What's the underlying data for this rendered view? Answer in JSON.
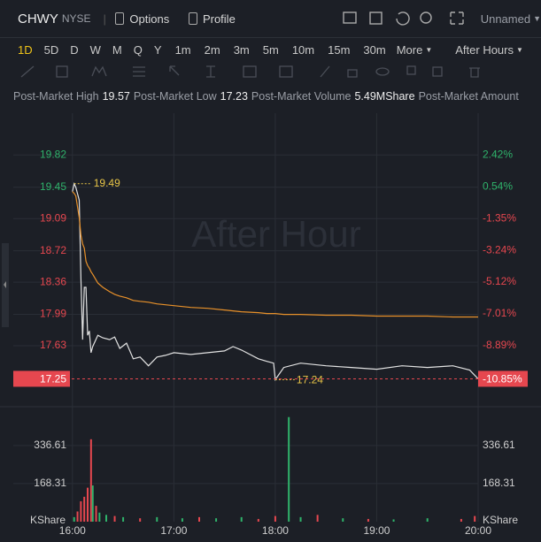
{
  "header": {
    "symbol": "CHWY",
    "exchange": "NYSE",
    "options": "Options",
    "profile": "Profile",
    "layout": "Unnamed"
  },
  "periods": [
    "1D",
    "5D",
    "D",
    "W",
    "M",
    "Q",
    "Y",
    "1m",
    "2m",
    "3m",
    "5m",
    "10m",
    "15m",
    "30m"
  ],
  "more": "More",
  "session": "After Hours",
  "active_color": "#f0c419",
  "stats": [
    {
      "label": "Post-Market High",
      "value": 19.57
    },
    {
      "label": "Post-Market Low",
      "value": 17.23
    },
    {
      "label": "Post-Market Volume",
      "value": "5.49MShare"
    },
    {
      "label": "Post-Market Amount"
    }
  ],
  "chart_data": [
    {
      "type": "line",
      "watermark": "After Hour",
      "up_color": "#2fb36b",
      "down_color": "#e6474f",
      "x": [
        "16:00",
        "16:01",
        "16:02",
        "16:04",
        "16:05",
        "16:06",
        "16:07",
        "16:08",
        "16:09",
        "16:10",
        "16:11",
        "16:12",
        "16:15",
        "16:18",
        "16:22",
        "16:25",
        "16:28",
        "16:32",
        "16:36",
        "16:40",
        "16:45",
        "16:50",
        "16:55",
        "17:00",
        "17:10",
        "17:20",
        "17:30",
        "17:35",
        "17:40",
        "17:50",
        "17:55",
        "17:59",
        "18:00",
        "18:05",
        "18:15",
        "18:30",
        "18:45",
        "19:00",
        "19:15",
        "19:30",
        "19:45",
        "19:55",
        "20:00"
      ],
      "series": [
        {
          "color": "#e2e2e2",
          "values": [
            19.4,
            19.49,
            19.45,
            19.3,
            18.4,
            17.7,
            18.3,
            18.3,
            17.75,
            17.8,
            17.55,
            17.62,
            17.75,
            17.72,
            17.7,
            17.73,
            17.6,
            17.66,
            17.48,
            17.5,
            17.4,
            17.5,
            17.52,
            17.55,
            17.53,
            17.55,
            17.57,
            17.62,
            17.58,
            17.48,
            17.45,
            17.43,
            17.24,
            17.38,
            17.43,
            17.4,
            17.38,
            17.36,
            17.4,
            17.38,
            17.4,
            17.35,
            17.25
          ]
        },
        {
          "color": "#e8912a",
          "values": [
            19.4,
            19.38,
            19.35,
            19.1,
            18.9,
            18.8,
            18.75,
            18.6,
            18.55,
            18.52,
            18.48,
            18.45,
            18.35,
            18.3,
            18.25,
            18.22,
            18.2,
            18.18,
            18.15,
            18.14,
            18.13,
            18.11,
            18.1,
            18.09,
            18.07,
            18.06,
            18.04,
            18.03,
            18.02,
            18.01,
            18.0,
            18.0,
            18.0,
            17.99,
            17.99,
            17.98,
            17.98,
            17.97,
            17.97,
            17.97,
            17.96,
            17.96,
            17.96
          ]
        }
      ],
      "high_label": {
        "x": "16:01",
        "value": 19.49
      },
      "low_label": {
        "x": "18:00",
        "value": 17.24
      },
      "current": {
        "value": 17.25,
        "change": "-10.85%"
      },
      "xlim": [
        "15:25",
        "20:00"
      ],
      "ylim": [
        16.95,
        20.3
      ],
      "yticks": [
        19.82,
        19.45,
        19.09,
        18.72,
        18.36,
        17.99,
        17.63
      ],
      "y2lim": [
        -12.41,
        4.9
      ],
      "y2ticks": [
        {
          "value": 2.42,
          "label": "2.42%"
        },
        {
          "value": 0.54,
          "label": "0.54%"
        },
        {
          "value": -1.35,
          "label": "-1.35%"
        },
        {
          "value": -3.24,
          "label": "-3.24%"
        },
        {
          "value": -5.12,
          "label": "-5.12%"
        },
        {
          "value": -7.01,
          "label": "-7.01%"
        },
        {
          "value": -8.89,
          "label": "-8.89%"
        }
      ],
      "grid": true
    },
    {
      "type": "bar",
      "unit": "KShare",
      "x": [
        "16:01",
        "16:03",
        "16:05",
        "16:07",
        "16:09",
        "16:11",
        "16:12",
        "16:14",
        "16:16",
        "16:20",
        "16:25",
        "16:30",
        "16:40",
        "16:50",
        "17:05",
        "17:15",
        "17:25",
        "17:40",
        "17:50",
        "18:00",
        "18:08",
        "18:15",
        "18:25",
        "18:40",
        "18:55",
        "19:10",
        "19:30",
        "19:50",
        "19:58"
      ],
      "values": [
        20,
        45,
        90,
        110,
        150,
        364,
        160,
        70,
        40,
        30,
        25,
        20,
        15,
        20,
        15,
        20,
        15,
        20,
        12,
        25,
        462,
        20,
        30,
        15,
        12,
        10,
        15,
        12,
        25
      ],
      "colors": [
        "#2fb36b",
        "#e6474f",
        "#e6474f",
        "#e6474f",
        "#e6474f",
        "#e6474f",
        "#2fb36b",
        "#e6474f",
        "#2fb36b",
        "#2fb36b",
        "#e6474f",
        "#2fb36b",
        "#e6474f",
        "#2fb36b",
        "#2fb36b",
        "#e6474f",
        "#2fb36b",
        "#2fb36b",
        "#e6474f",
        "#e6474f",
        "#2fb36b",
        "#2fb36b",
        "#e6474f",
        "#2fb36b",
        "#e6474f",
        "#2fb36b",
        "#2fb36b",
        "#e6474f",
        "#e6474f"
      ],
      "xlim": [
        "15:25",
        "20:00"
      ],
      "ylim": [
        0,
        500
      ],
      "yticks": [
        336.61,
        168.31
      ],
      "xticks": [
        "16:00",
        "17:00",
        "18:00",
        "19:00",
        "20:00"
      ]
    }
  ]
}
